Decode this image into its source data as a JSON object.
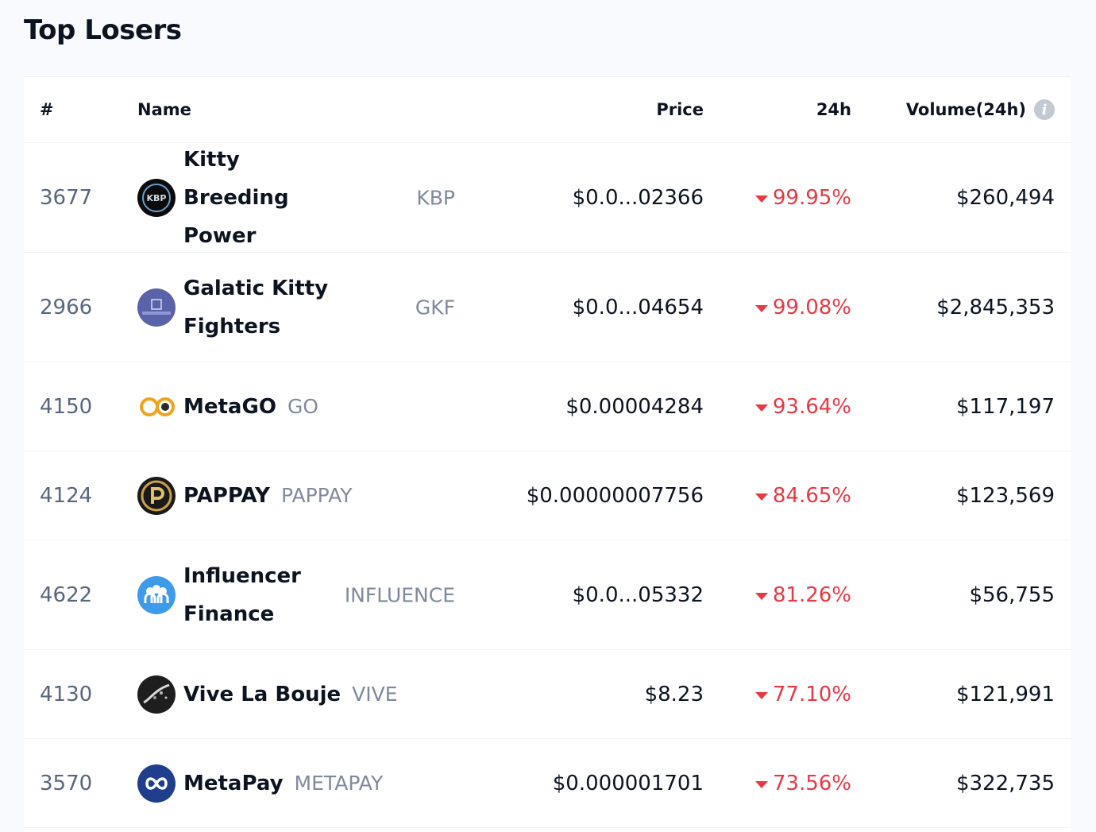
{
  "page": {
    "title": "Top Losers"
  },
  "table": {
    "headers": {
      "rank": "#",
      "name": "Name",
      "price": "Price",
      "change": "24h",
      "volume": "Volume(24h)"
    },
    "rows": [
      {
        "rank": "3677",
        "name": "Kitty Breeding Power",
        "symbol": "KBP",
        "price": "$0.0...02366",
        "change": "99.95%",
        "volume": "$260,494",
        "icon": "kbp-logo-icon"
      },
      {
        "rank": "2966",
        "name": "Galatic Kitty Fighters",
        "symbol": "GKF",
        "price": "$0.0...04654",
        "change": "99.08%",
        "volume": "$2,845,353",
        "icon": "gkf-logo-icon"
      },
      {
        "rank": "4150",
        "name": "MetaGO",
        "symbol": "GO",
        "price": "$0.00004284",
        "change": "93.64%",
        "volume": "$117,197",
        "icon": "metago-logo-icon"
      },
      {
        "rank": "4124",
        "name": "PAPPAY",
        "symbol": "PAPPAY",
        "price": "$0.00000007756",
        "change": "84.65%",
        "volume": "$123,569",
        "icon": "pappay-logo-icon"
      },
      {
        "rank": "4622",
        "name": "Influencer Finance",
        "symbol": "INFLUENCE",
        "price": "$0.0...05332",
        "change": "81.26%",
        "volume": "$56,755",
        "icon": "influence-logo-icon"
      },
      {
        "rank": "4130",
        "name": "Vive La Bouje",
        "symbol": "VIVE",
        "price": "$8.23",
        "change": "77.10%",
        "volume": "$121,991",
        "icon": "vive-logo-icon"
      },
      {
        "rank": "3570",
        "name": "MetaPay",
        "symbol": "METAPAY",
        "price": "$0.000001701",
        "change": "73.56%",
        "volume": "$322,735",
        "icon": "metapay-logo-icon"
      }
    ]
  },
  "colors": {
    "negative": "#ea3943",
    "muted": "#58667e",
    "text": "#0d1421"
  }
}
